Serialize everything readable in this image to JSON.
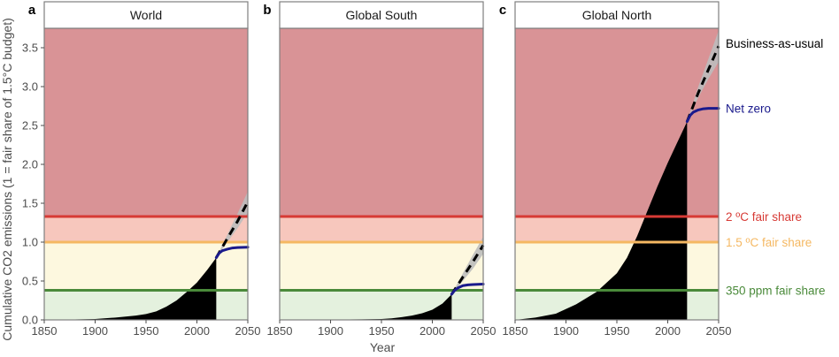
{
  "chart_data": {
    "type": "area",
    "xlabel": "Year",
    "ylabel": "Cumulative CO2 emissions (1 = fair share of 1.5°C budget)",
    "xlim": [
      1850,
      2050
    ],
    "ylim": [
      0,
      3.75
    ],
    "x_ticks": [
      "1850",
      "1900",
      "1950",
      "2000",
      "2050"
    ],
    "y_ticks": [
      "0.0",
      "0.5",
      "1.0",
      "1.5",
      "2.0",
      "2.5",
      "3.0",
      "3.5"
    ],
    "bands": [
      {
        "from": 0,
        "to": 0.38,
        "color": "#e4f1de"
      },
      {
        "from": 0.38,
        "to": 1.0,
        "color": "#fdf8df"
      },
      {
        "from": 1.0,
        "to": 1.33,
        "color": "#f7c7bd"
      },
      {
        "from": 1.33,
        "to": 3.75,
        "color": "#d99396"
      }
    ],
    "thresholds": [
      {
        "name": "2 ºC fair share",
        "value": 1.33,
        "color": "#d73a35"
      },
      {
        "name": "1.5 ºC fair share",
        "value": 1.0,
        "color": "#f5b862"
      },
      {
        "name": "350 ppm fair share",
        "value": 0.38,
        "color": "#4a8a3a"
      }
    ],
    "scenarios": [
      {
        "name": "Business-as-usual",
        "color": "#000000"
      },
      {
        "name": "Net zero",
        "color": "#1a1a8c"
      }
    ],
    "panels": [
      {
        "letter": "a",
        "title": "World",
        "historical": {
          "x": [
            1850,
            1880,
            1900,
            1920,
            1940,
            1950,
            1960,
            1970,
            1980,
            1990,
            2000,
            2010,
            2019
          ],
          "y": [
            0,
            0.005,
            0.012,
            0.03,
            0.055,
            0.075,
            0.11,
            0.17,
            0.25,
            0.36,
            0.48,
            0.64,
            0.8
          ]
        },
        "business_as_usual": {
          "x": [
            2019,
            2030,
            2040,
            2050
          ],
          "y": [
            0.8,
            1.05,
            1.27,
            1.52
          ]
        },
        "bau_uncertainty": {
          "x": [
            2019,
            2030,
            2040,
            2050
          ],
          "upper": [
            0.8,
            1.1,
            1.37,
            1.65
          ],
          "lower": [
            0.8,
            1.0,
            1.18,
            1.38
          ]
        },
        "net_zero": {
          "x": [
            2019,
            2022,
            2025,
            2030,
            2035,
            2040,
            2050
          ],
          "y": [
            0.8,
            0.86,
            0.89,
            0.91,
            0.925,
            0.93,
            0.935
          ]
        }
      },
      {
        "letter": "b",
        "title": "Global South",
        "historical": {
          "x": [
            1850,
            1900,
            1930,
            1950,
            1960,
            1970,
            1980,
            1990,
            2000,
            2010,
            2019
          ],
          "y": [
            0,
            0.003,
            0.007,
            0.012,
            0.02,
            0.035,
            0.055,
            0.085,
            0.13,
            0.21,
            0.33
          ]
        },
        "business_as_usual": {
          "x": [
            2019,
            2030,
            2040,
            2050
          ],
          "y": [
            0.33,
            0.55,
            0.75,
            0.96
          ]
        },
        "bau_uncertainty": {
          "x": [
            2019,
            2030,
            2040,
            2050
          ],
          "upper": [
            0.33,
            0.6,
            0.84,
            1.07
          ],
          "lower": [
            0.33,
            0.5,
            0.66,
            0.85
          ]
        },
        "net_zero": {
          "x": [
            2019,
            2022,
            2025,
            2030,
            2035,
            2040,
            2050
          ],
          "y": [
            0.33,
            0.38,
            0.41,
            0.44,
            0.45,
            0.455,
            0.46
          ]
        }
      },
      {
        "letter": "c",
        "title": "Global North",
        "historical": {
          "x": [
            1850,
            1870,
            1890,
            1910,
            1930,
            1950,
            1960,
            1970,
            1980,
            1990,
            2000,
            2010,
            2019
          ],
          "y": [
            0,
            0.03,
            0.08,
            0.2,
            0.36,
            0.6,
            0.8,
            1.08,
            1.4,
            1.72,
            2.02,
            2.3,
            2.55
          ]
        },
        "business_as_usual": {
          "x": [
            2019,
            2030,
            2040,
            2050
          ],
          "y": [
            2.55,
            2.92,
            3.22,
            3.52
          ]
        },
        "bau_uncertainty": {
          "x": [
            2019,
            2030,
            2040,
            2050
          ],
          "upper": [
            2.55,
            3.0,
            3.36,
            3.72
          ],
          "lower": [
            2.55,
            2.86,
            3.1,
            3.32
          ]
        },
        "net_zero": {
          "x": [
            2019,
            2022,
            2025,
            2030,
            2035,
            2040,
            2050
          ],
          "y": [
            2.55,
            2.63,
            2.67,
            2.7,
            2.715,
            2.72,
            2.72
          ]
        }
      }
    ]
  }
}
